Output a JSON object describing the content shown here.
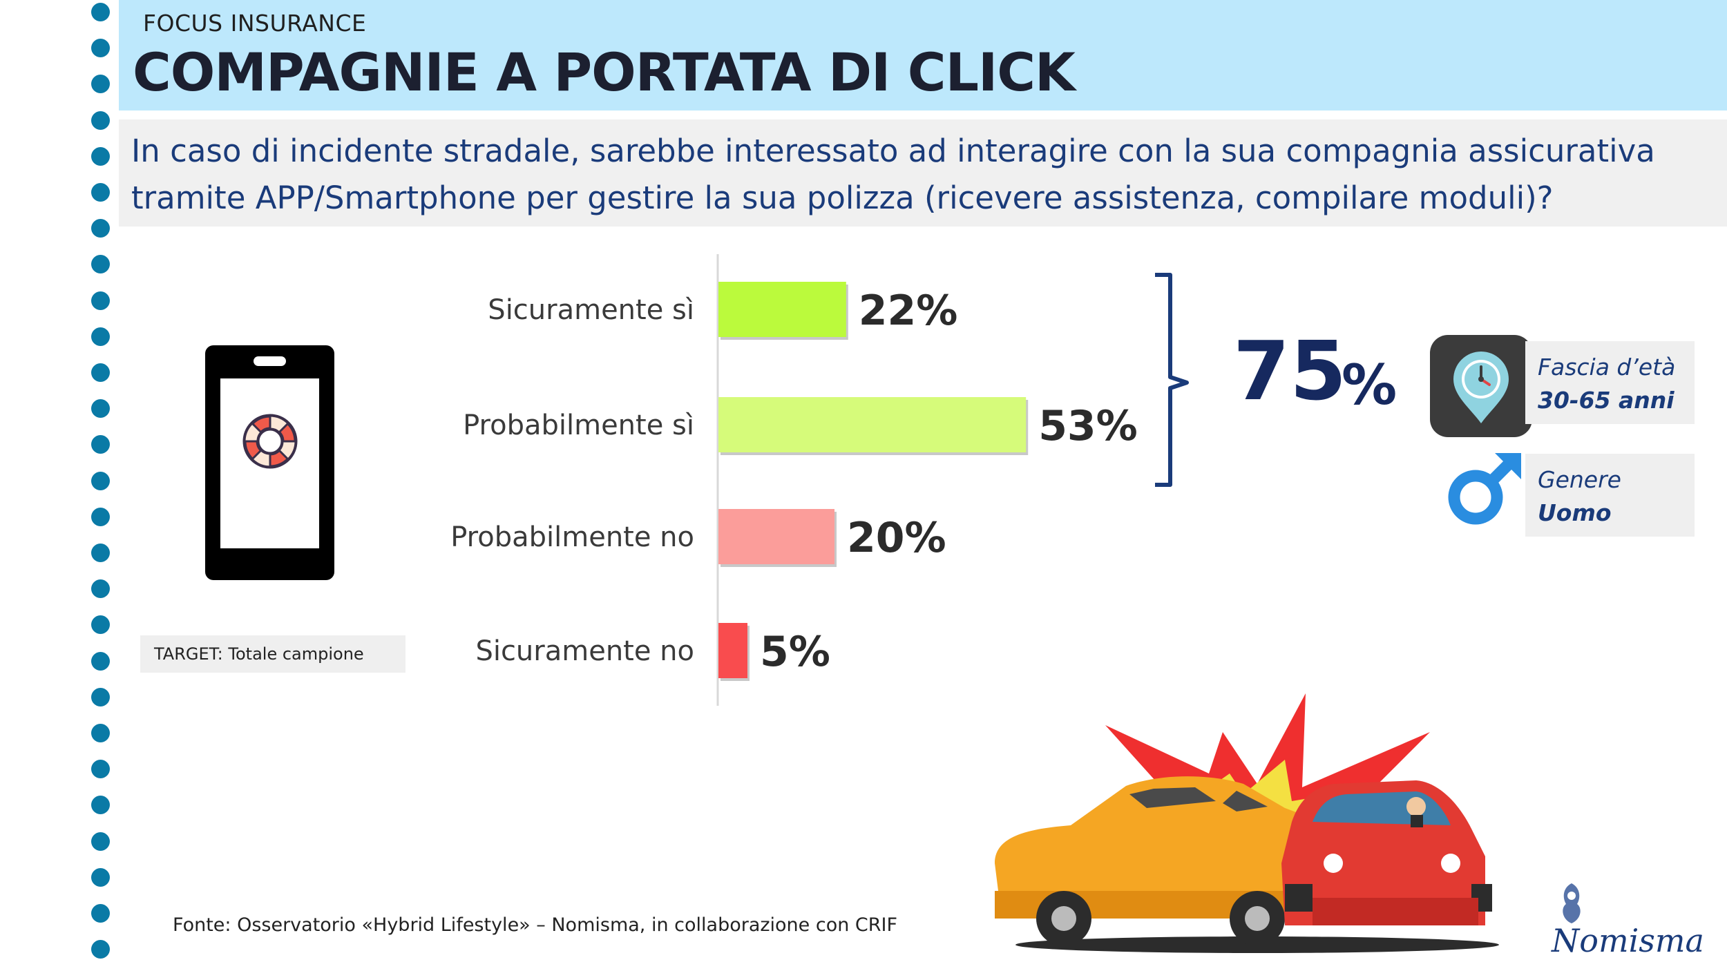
{
  "header": {
    "kicker": "FOCUS INSURANCE",
    "title": "COMPAGNIE A PORTATA DI CLICK"
  },
  "question": "In caso di incidente stradale, sarebbe interessato ad interagire con la sua compagnia assicurativa tramite APP/Smartphone per gestire la sua polizza (ricevere assistenza, compilare moduli)?",
  "target": "TARGET: Totale campione",
  "source": "Fonte: Osservatorio «Hybrid  Lifestyle» – Nomisma, in collaborazione con CRIF",
  "chart_data": {
    "type": "bar",
    "orientation": "horizontal",
    "categories": [
      "Sicuramente sì",
      "Probabilmente sì",
      "Probabilmente no",
      "Sicuramente no"
    ],
    "values": [
      22,
      53,
      20,
      5
    ],
    "value_labels": [
      "22%",
      "53%",
      "20%",
      "5%"
    ],
    "colors": [
      "#bbfa3c",
      "#d6fb7a",
      "#fb9d9a",
      "#f94c4e"
    ],
    "unit": "%"
  },
  "summary": {
    "total_value": "75",
    "total_unit": "%",
    "bracket_covers": [
      "Sicuramente sì",
      "Probabilmente sì"
    ],
    "color": "#16295f"
  },
  "profile": {
    "age_label": "Fascia d’età",
    "age_value": "30-65 anni",
    "gender_label": "Genere",
    "gender_value": "Uomo"
  },
  "icons": {
    "phone": "smartphone-icon",
    "phone_screen": "lifebuoy-icon",
    "age": "clock-location-pin-icon",
    "gender": "male-symbol-icon",
    "illustration": "car-crash-illustration",
    "logo": "nomisma-logo"
  },
  "logo_text": "Nomisma",
  "colors": {
    "header_bg": "#bde8fc",
    "accent_blue": "#0a7aa6",
    "text_blue": "#1a3b7a"
  }
}
